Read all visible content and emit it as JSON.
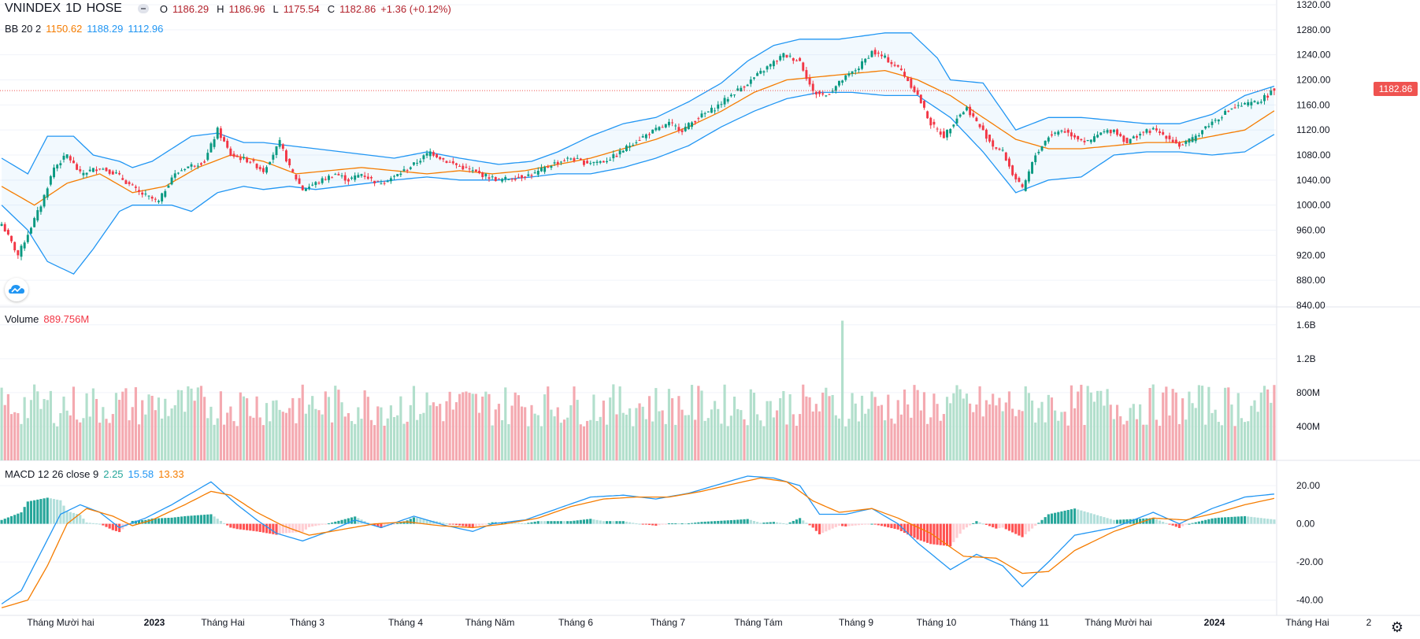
{
  "header": {
    "symbol": "VNINDEX",
    "interval": "1D",
    "exchange": "HOSE",
    "open_label": "O",
    "open": "1186.29",
    "high_label": "H",
    "high": "1186.96",
    "low_label": "L",
    "low": "1175.54",
    "close_label": "C",
    "close": "1182.86",
    "change": "+1.36 (+0.12%)"
  },
  "bb_legend": {
    "label": "BB 20 2",
    "basis": "1150.62",
    "upper": "1188.29",
    "lower": "1112.96"
  },
  "volume_legend": {
    "label": "Volume",
    "value": "889.756M"
  },
  "macd_legend": {
    "label": "MACD 12 26 close 9",
    "histogram": "2.25",
    "macd": "15.58",
    "signal": "13.33"
  },
  "price_tag": "1182.86",
  "colors": {
    "up": "#089981",
    "down": "#f23645",
    "vol_up": "#b2dfcc",
    "vol_down": "#f4a9b0",
    "bb_band": "#2196f3",
    "bb_basis": "#f57c00",
    "macd_line": "#2196f3",
    "signal_line": "#f57c00",
    "last_price": "#ef5350"
  },
  "icons": {
    "logo": "tradingview-cloud-icon",
    "settings": "gear-icon"
  },
  "chart_data": [
    {
      "type": "candlestick",
      "title": "VNINDEX 1D HOSE",
      "ylim": [
        840,
        1320
      ],
      "y_ticks": [
        "1320.00",
        "1280.00",
        "1240.00",
        "1200.00",
        "1160.00",
        "1120.00",
        "1080.00",
        "1040.00",
        "1000.00",
        "960.00",
        "920.00",
        "880.00",
        "840.00"
      ],
      "x_ticks": [
        "Tháng Mười hai",
        "2023",
        "Tháng Hai",
        "Tháng 3",
        "Tháng 4",
        "Tháng Năm",
        "Tháng 6",
        "Tháng 7",
        "Tháng Tám",
        "Tháng 9",
        "Tháng 10",
        "Tháng 11",
        "Tháng Mười hai",
        "2024",
        "Tháng Hai",
        "2"
      ],
      "close_path": [
        [
          0,
          970
        ],
        [
          5,
          920
        ],
        [
          12,
          1000
        ],
        [
          16,
          1060
        ],
        [
          20,
          1080
        ],
        [
          24,
          1050
        ],
        [
          30,
          1060
        ],
        [
          35,
          1050
        ],
        [
          42,
          1020
        ],
        [
          48,
          1005
        ],
        [
          52,
          1045
        ],
        [
          56,
          1060
        ],
        [
          62,
          1070
        ],
        [
          66,
          1120
        ],
        [
          70,
          1080
        ],
        [
          76,
          1070
        ],
        [
          80,
          1055
        ],
        [
          85,
          1100
        ],
        [
          88,
          1060
        ],
        [
          92,
          1025
        ],
        [
          96,
          1035
        ],
        [
          102,
          1050
        ],
        [
          106,
          1040
        ],
        [
          110,
          1050
        ],
        [
          115,
          1035
        ],
        [
          120,
          1045
        ],
        [
          126,
          1065
        ],
        [
          131,
          1085
        ],
        [
          136,
          1070
        ],
        [
          141,
          1060
        ],
        [
          146,
          1050
        ],
        [
          152,
          1040
        ],
        [
          158,
          1045
        ],
        [
          163,
          1050
        ],
        [
          168,
          1065
        ],
        [
          174,
          1075
        ],
        [
          178,
          1068
        ],
        [
          184,
          1070
        ],
        [
          188,
          1080
        ],
        [
          193,
          1100
        ],
        [
          198,
          1115
        ],
        [
          204,
          1130
        ],
        [
          208,
          1120
        ],
        [
          213,
          1140
        ],
        [
          218,
          1155
        ],
        [
          224,
          1180
        ],
        [
          228,
          1195
        ],
        [
          234,
          1220
        ],
        [
          239,
          1240
        ],
        [
          244,
          1230
        ],
        [
          248,
          1180
        ],
        [
          252,
          1175
        ],
        [
          257,
          1200
        ],
        [
          262,
          1220
        ],
        [
          266,
          1245
        ],
        [
          270,
          1235
        ],
        [
          275,
          1215
        ],
        [
          280,
          1175
        ],
        [
          284,
          1130
        ],
        [
          288,
          1110
        ],
        [
          292,
          1140
        ],
        [
          295,
          1155
        ],
        [
          299,
          1125
        ],
        [
          303,
          1095
        ],
        [
          306,
          1085
        ],
        [
          309,
          1050
        ],
        [
          312,
          1025
        ],
        [
          316,
          1080
        ],
        [
          320,
          1110
        ],
        [
          324,
          1120
        ],
        [
          328,
          1110
        ],
        [
          332,
          1100
        ],
        [
          336,
          1115
        ],
        [
          340,
          1120
        ],
        [
          344,
          1100
        ],
        [
          348,
          1115
        ],
        [
          352,
          1120
        ],
        [
          356,
          1110
        ],
        [
          360,
          1095
        ],
        [
          364,
          1105
        ],
        [
          368,
          1125
        ],
        [
          372,
          1140
        ],
        [
          376,
          1155
        ],
        [
          380,
          1160
        ],
        [
          384,
          1165
        ],
        [
          389,
          1182.86
        ]
      ],
      "bb_upper_path": [
        [
          0,
          1075
        ],
        [
          8,
          1050
        ],
        [
          14,
          1110
        ],
        [
          22,
          1110
        ],
        [
          28,
          1080
        ],
        [
          36,
          1070
        ],
        [
          40,
          1060
        ],
        [
          46,
          1070
        ],
        [
          52,
          1090
        ],
        [
          58,
          1110
        ],
        [
          66,
          1115
        ],
        [
          74,
          1100
        ],
        [
          80,
          1100
        ],
        [
          88,
          1095
        ],
        [
          96,
          1090
        ],
        [
          104,
          1085
        ],
        [
          112,
          1080
        ],
        [
          120,
          1075
        ],
        [
          130,
          1085
        ],
        [
          140,
          1075
        ],
        [
          152,
          1065
        ],
        [
          162,
          1070
        ],
        [
          170,
          1085
        ],
        [
          180,
          1110
        ],
        [
          190,
          1130
        ],
        [
          200,
          1140
        ],
        [
          210,
          1165
        ],
        [
          220,
          1195
        ],
        [
          228,
          1230
        ],
        [
          236,
          1255
        ],
        [
          244,
          1265
        ],
        [
          256,
          1265
        ],
        [
          270,
          1275
        ],
        [
          278,
          1275
        ],
        [
          286,
          1235
        ],
        [
          290,
          1200
        ],
        [
          300,
          1195
        ],
        [
          310,
          1120
        ],
        [
          320,
          1140
        ],
        [
          330,
          1140
        ],
        [
          340,
          1135
        ],
        [
          350,
          1130
        ],
        [
          360,
          1130
        ],
        [
          370,
          1145
        ],
        [
          380,
          1175
        ],
        [
          389,
          1190
        ]
      ],
      "bb_basis_path": [
        [
          0,
          1030
        ],
        [
          10,
          1000
        ],
        [
          20,
          1035
        ],
        [
          30,
          1050
        ],
        [
          40,
          1020
        ],
        [
          50,
          1030
        ],
        [
          60,
          1060
        ],
        [
          70,
          1080
        ],
        [
          80,
          1070
        ],
        [
          90,
          1050
        ],
        [
          100,
          1055
        ],
        [
          110,
          1060
        ],
        [
          120,
          1055
        ],
        [
          130,
          1050
        ],
        [
          140,
          1055
        ],
        [
          150,
          1050
        ],
        [
          160,
          1055
        ],
        [
          170,
          1065
        ],
        [
          180,
          1075
        ],
        [
          190,
          1090
        ],
        [
          200,
          1105
        ],
        [
          210,
          1125
        ],
        [
          220,
          1150
        ],
        [
          230,
          1180
        ],
        [
          240,
          1200
        ],
        [
          250,
          1205
        ],
        [
          260,
          1210
        ],
        [
          270,
          1215
        ],
        [
          280,
          1200
        ],
        [
          290,
          1175
        ],
        [
          300,
          1140
        ],
        [
          310,
          1105
        ],
        [
          320,
          1090
        ],
        [
          330,
          1090
        ],
        [
          340,
          1095
        ],
        [
          350,
          1100
        ],
        [
          360,
          1100
        ],
        [
          370,
          1110
        ],
        [
          380,
          1120
        ],
        [
          389,
          1150.62
        ]
      ],
      "bb_lower_path": [
        [
          0,
          1000
        ],
        [
          8,
          960
        ],
        [
          14,
          910
        ],
        [
          22,
          890
        ],
        [
          28,
          930
        ],
        [
          36,
          990
        ],
        [
          40,
          1000
        ],
        [
          46,
          1000
        ],
        [
          52,
          1000
        ],
        [
          58,
          990
        ],
        [
          66,
          1020
        ],
        [
          74,
          1030
        ],
        [
          80,
          1025
        ],
        [
          88,
          1030
        ],
        [
          96,
          1025
        ],
        [
          104,
          1030
        ],
        [
          112,
          1035
        ],
        [
          120,
          1040
        ],
        [
          130,
          1045
        ],
        [
          140,
          1040
        ],
        [
          152,
          1040
        ],
        [
          162,
          1045
        ],
        [
          170,
          1050
        ],
        [
          180,
          1050
        ],
        [
          190,
          1060
        ],
        [
          200,
          1075
        ],
        [
          210,
          1095
        ],
        [
          220,
          1125
        ],
        [
          230,
          1150
        ],
        [
          240,
          1170
        ],
        [
          250,
          1180
        ],
        [
          260,
          1180
        ],
        [
          270,
          1175
        ],
        [
          280,
          1175
        ],
        [
          290,
          1140
        ],
        [
          300,
          1085
        ],
        [
          310,
          1020
        ],
        [
          320,
          1040
        ],
        [
          330,
          1045
        ],
        [
          340,
          1080
        ],
        [
          350,
          1085
        ],
        [
          360,
          1085
        ],
        [
          370,
          1080
        ],
        [
          380,
          1085
        ],
        [
          389,
          1112.96
        ]
      ]
    },
    {
      "type": "bar",
      "title": "Volume",
      "ylim": [
        0,
        1700000000
      ],
      "y_ticks": [
        "1.6B",
        "1.2B",
        "800M",
        "400M"
      ],
      "last_value": 889756000,
      "peak_value": 1700000000
    },
    {
      "type": "bar",
      "title": "MACD 12 26 close 9",
      "ylim": [
        -48,
        32
      ],
      "y_ticks": [
        "20.00",
        "0.00",
        "-20.00",
        "-40.00"
      ],
      "macd_path": [
        [
          0,
          -42
        ],
        [
          6,
          -35
        ],
        [
          12,
          -15
        ],
        [
          18,
          5
        ],
        [
          24,
          10
        ],
        [
          30,
          6
        ],
        [
          36,
          -2
        ],
        [
          44,
          3
        ],
        [
          52,
          10
        ],
        [
          60,
          18
        ],
        [
          64,
          22
        ],
        [
          68,
          16
        ],
        [
          72,
          10
        ],
        [
          78,
          2
        ],
        [
          84,
          -5
        ],
        [
          92,
          -9
        ],
        [
          100,
          -4
        ],
        [
          108,
          2
        ],
        [
          116,
          -2
        ],
        [
          126,
          4
        ],
        [
          136,
          -1
        ],
        [
          144,
          -4
        ],
        [
          150,
          0
        ],
        [
          160,
          2
        ],
        [
          170,
          8
        ],
        [
          180,
          14
        ],
        [
          190,
          15
        ],
        [
          200,
          13
        ],
        [
          210,
          16
        ],
        [
          220,
          21
        ],
        [
          228,
          25
        ],
        [
          236,
          24
        ],
        [
          244,
          20
        ],
        [
          250,
          5
        ],
        [
          258,
          5
        ],
        [
          266,
          8
        ],
        [
          274,
          0
        ],
        [
          280,
          -10
        ],
        [
          290,
          -24
        ],
        [
          298,
          -16
        ],
        [
          306,
          -22
        ],
        [
          312,
          -33
        ],
        [
          320,
          -20
        ],
        [
          328,
          -6
        ],
        [
          340,
          -2
        ],
        [
          352,
          6
        ],
        [
          360,
          0
        ],
        [
          370,
          8
        ],
        [
          380,
          14
        ],
        [
          389,
          15.58
        ]
      ],
      "signal_path": [
        [
          0,
          -44
        ],
        [
          8,
          -40
        ],
        [
          14,
          -22
        ],
        [
          20,
          0
        ],
        [
          26,
          8
        ],
        [
          34,
          4
        ],
        [
          40,
          -1
        ],
        [
          46,
          2
        ],
        [
          56,
          10
        ],
        [
          64,
          17
        ],
        [
          70,
          15
        ],
        [
          78,
          6
        ],
        [
          86,
          -1
        ],
        [
          94,
          -6
        ],
        [
          104,
          -3
        ],
        [
          114,
          0
        ],
        [
          124,
          1
        ],
        [
          134,
          -1
        ],
        [
          144,
          -2
        ],
        [
          154,
          0
        ],
        [
          164,
          3
        ],
        [
          174,
          9
        ],
        [
          184,
          13
        ],
        [
          194,
          14
        ],
        [
          204,
          14
        ],
        [
          214,
          17
        ],
        [
          224,
          21
        ],
        [
          232,
          24
        ],
        [
          240,
          22
        ],
        [
          248,
          12
        ],
        [
          256,
          6
        ],
        [
          266,
          8
        ],
        [
          274,
          3
        ],
        [
          284,
          -5
        ],
        [
          294,
          -17
        ],
        [
          304,
          -18
        ],
        [
          312,
          -26
        ],
        [
          320,
          -25
        ],
        [
          328,
          -14
        ],
        [
          340,
          -4
        ],
        [
          352,
          3
        ],
        [
          362,
          2
        ],
        [
          372,
          6
        ],
        [
          380,
          10
        ],
        [
          389,
          13.33
        ]
      ],
      "last_histogram": 2.25
    }
  ]
}
